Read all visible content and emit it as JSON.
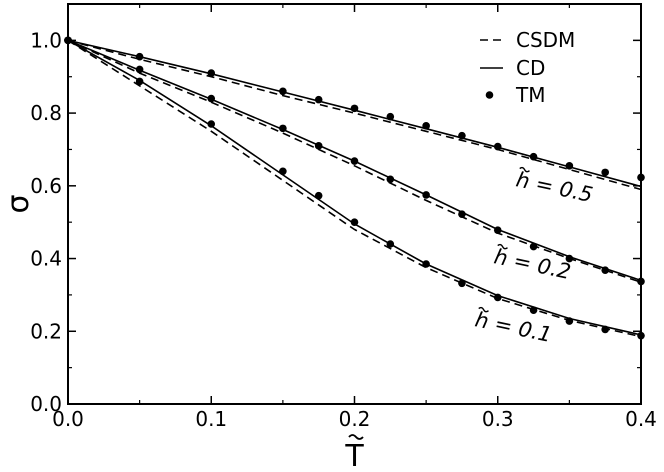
{
  "chart_data": {
    "type": "line",
    "title": "",
    "xlabel": "T",
    "ylabel": "σ",
    "xlim": [
      0.0,
      0.4
    ],
    "ylim": [
      0.0,
      1.1
    ],
    "x_ticks": [
      "0.0",
      "0.1",
      "0.2",
      "0.3",
      "0.4"
    ],
    "y_ticks": [
      "0.0",
      "0.2",
      "0.4",
      "0.6",
      "0.8",
      "1.0"
    ],
    "grid": false,
    "legend": {
      "placement": "top-right",
      "entries": [
        {
          "label": "CSDM",
          "style": "dashed"
        },
        {
          "label": "CD",
          "style": "solid"
        },
        {
          "label": "TM",
          "style": "marker"
        }
      ]
    },
    "groups": [
      {
        "annotation": "h = 0.5",
        "CSDM": {
          "x": [
            0,
            0.05,
            0.1,
            0.15,
            0.2,
            0.25,
            0.3,
            0.35,
            0.4
          ],
          "y": [
            1.0,
            0.948,
            0.9,
            0.848,
            0.8,
            0.75,
            0.7,
            0.645,
            0.59
          ]
        },
        "CD": {
          "x": [
            0,
            0.05,
            0.1,
            0.15,
            0.2,
            0.25,
            0.3,
            0.35,
            0.4
          ],
          "y": [
            1.0,
            0.955,
            0.908,
            0.858,
            0.808,
            0.757,
            0.706,
            0.652,
            0.598
          ]
        },
        "TM": {
          "x": [
            0,
            0.05,
            0.1,
            0.15,
            0.175,
            0.2,
            0.225,
            0.25,
            0.275,
            0.3,
            0.325,
            0.35,
            0.375,
            0.4
          ],
          "y": [
            1.0,
            0.955,
            0.91,
            0.86,
            0.837,
            0.813,
            0.79,
            0.765,
            0.738,
            0.708,
            0.68,
            0.655,
            0.637,
            0.623
          ]
        }
      },
      {
        "annotation": "h = 0.2",
        "CSDM": {
          "x": [
            0,
            0.05,
            0.1,
            0.15,
            0.2,
            0.25,
            0.3,
            0.35,
            0.4
          ],
          "y": [
            1.0,
            0.91,
            0.83,
            0.745,
            0.655,
            0.56,
            0.47,
            0.4,
            0.335
          ]
        },
        "CD": {
          "x": [
            0,
            0.05,
            0.1,
            0.15,
            0.2,
            0.25,
            0.3,
            0.35,
            0.4
          ],
          "y": [
            1.0,
            0.918,
            0.838,
            0.755,
            0.668,
            0.575,
            0.48,
            0.405,
            0.34
          ]
        },
        "TM": {
          "x": [
            0,
            0.05,
            0.1,
            0.15,
            0.175,
            0.2,
            0.225,
            0.25,
            0.275,
            0.3,
            0.325,
            0.35,
            0.375,
            0.4
          ],
          "y": [
            1.0,
            0.92,
            0.84,
            0.758,
            0.71,
            0.668,
            0.618,
            0.575,
            0.522,
            0.478,
            0.433,
            0.4,
            0.368,
            0.337
          ]
        }
      },
      {
        "annotation": "h = 0.1",
        "CSDM": {
          "x": [
            0,
            0.05,
            0.1,
            0.15,
            0.2,
            0.25,
            0.3,
            0.35,
            0.4
          ],
          "y": [
            1.0,
            0.875,
            0.75,
            0.615,
            0.48,
            0.375,
            0.29,
            0.23,
            0.185
          ]
        },
        "CD": {
          "x": [
            0,
            0.05,
            0.1,
            0.15,
            0.2,
            0.25,
            0.3,
            0.35,
            0.4
          ],
          "y": [
            1.0,
            0.89,
            0.765,
            0.63,
            0.495,
            0.385,
            0.298,
            0.235,
            0.19
          ]
        },
        "TM": {
          "x": [
            0,
            0.05,
            0.1,
            0.15,
            0.175,
            0.2,
            0.225,
            0.25,
            0.275,
            0.3,
            0.325,
            0.35,
            0.375,
            0.4
          ],
          "y": [
            1.0,
            0.887,
            0.77,
            0.64,
            0.573,
            0.5,
            0.44,
            0.385,
            0.332,
            0.293,
            0.258,
            0.228,
            0.205,
            0.188
          ]
        }
      }
    ]
  }
}
